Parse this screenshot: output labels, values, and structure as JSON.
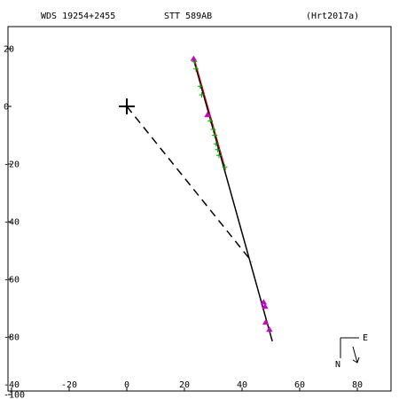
{
  "header": {
    "left": "WDS 19254+2455",
    "center": "STT 589AB",
    "right": "(Hrt2017a)"
  },
  "compass": {
    "east_label": "E",
    "north_label": "N"
  },
  "chart_data": {
    "type": "scatter",
    "title": "STT 589AB",
    "xlim": [
      -40,
      95
    ],
    "ylim": [
      -100,
      30
    ],
    "x_ticks": [
      -40,
      -20,
      0,
      20,
      40,
      60,
      80
    ],
    "y_ticks": [
      -100,
      -80,
      -60,
      -40,
      -20,
      0,
      20
    ],
    "grid": false,
    "primary": {
      "x": 0,
      "y": 0,
      "marker": "plus"
    },
    "fit_line": {
      "color": "#000000",
      "points": [
        [
          23,
          17
        ],
        [
          50.5,
          -81.5
        ]
      ]
    },
    "ephemeris_line": {
      "color": "#cc0000",
      "points": [
        [
          23,
          17
        ],
        [
          34,
          -22
        ]
      ]
    },
    "node_line": {
      "style": "dashed",
      "points": [
        [
          0,
          0
        ],
        [
          43.5,
          -54
        ]
      ]
    },
    "observations": [
      {
        "name": "green",
        "color": "#00aa00",
        "marker": "plus",
        "points": [
          [
            23.5,
            15.5
          ],
          [
            24,
            13
          ],
          [
            25.5,
            7
          ],
          [
            26,
            4
          ],
          [
            29,
            -5
          ],
          [
            30,
            -8
          ],
          [
            30.5,
            -10
          ],
          [
            31,
            -13
          ],
          [
            31.5,
            -15
          ],
          [
            32,
            -17
          ],
          [
            34,
            -21
          ]
        ]
      },
      {
        "name": "magenta",
        "color": "#cc00cc",
        "marker": "triangle",
        "points": [
          [
            23.2,
            16.5
          ],
          [
            28,
            -3
          ],
          [
            47.5,
            -68
          ],
          [
            48,
            -69.5
          ],
          [
            48.2,
            -75
          ],
          [
            49.5,
            -77.5
          ]
        ]
      }
    ]
  }
}
